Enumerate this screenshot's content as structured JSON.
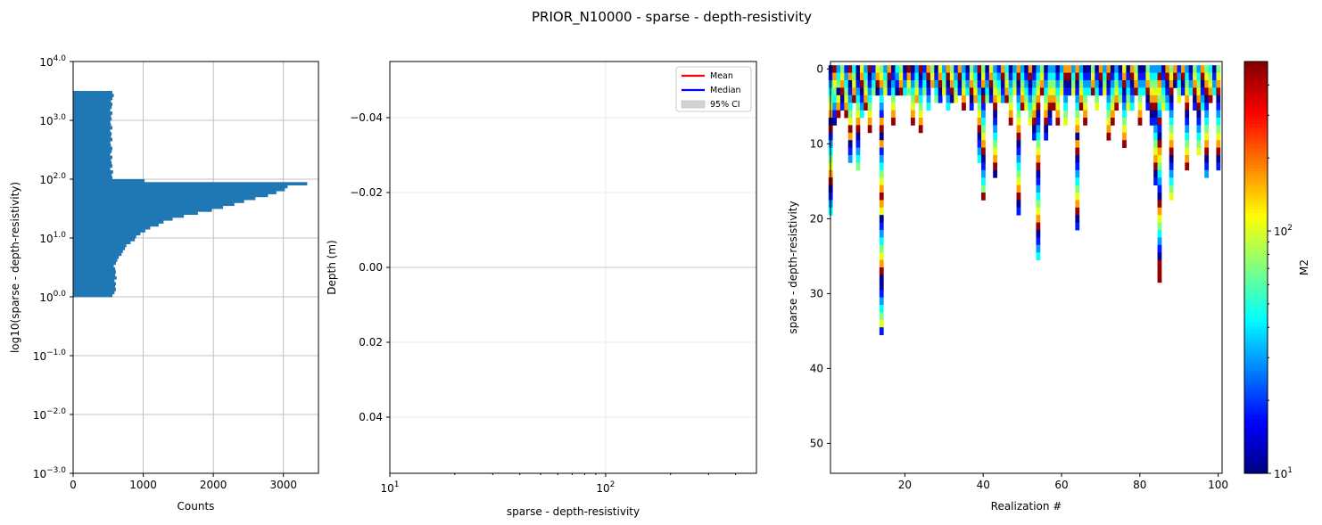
{
  "figure": {
    "suptitle": "PRIOR_N10000 - sparse - depth-resistivity"
  },
  "chart_data": [
    {
      "type": "bar",
      "orientation": "horizontal",
      "name": "histogram",
      "xlabel": "Counts",
      "ylabel": "log10(sparse - depth-resistivity)",
      "xlim": [
        0,
        3500
      ],
      "ylim_log10": [
        -3.0,
        4.0
      ],
      "xticks": [
        "0",
        "1000",
        "2000",
        "3000"
      ],
      "yticks": [
        {
          "base": "10",
          "exp": "4.0"
        },
        {
          "base": "10",
          "exp": "3.0"
        },
        {
          "base": "10",
          "exp": "2.0"
        },
        {
          "base": "10",
          "exp": "1.0"
        },
        {
          "base": "10",
          "exp": "0.0"
        },
        {
          "base": "10",
          "exp": "−1.0"
        },
        {
          "base": "10",
          "exp": "−2.0"
        },
        {
          "base": "10",
          "exp": "−3.0"
        }
      ],
      "grid": true,
      "bins_log10": [
        [
          0.0,
          0.05,
          560
        ],
        [
          0.05,
          0.1,
          590
        ],
        [
          0.1,
          0.15,
          610
        ],
        [
          0.15,
          0.2,
          600
        ],
        [
          0.2,
          0.25,
          610
        ],
        [
          0.25,
          0.3,
          590
        ],
        [
          0.3,
          0.35,
          620
        ],
        [
          0.35,
          0.4,
          600
        ],
        [
          0.4,
          0.45,
          610
        ],
        [
          0.45,
          0.5,
          600
        ],
        [
          0.5,
          0.55,
          580
        ],
        [
          0.55,
          0.6,
          610
        ],
        [
          0.6,
          0.65,
          630
        ],
        [
          0.65,
          0.7,
          650
        ],
        [
          0.7,
          0.75,
          690
        ],
        [
          0.75,
          0.8,
          710
        ],
        [
          0.8,
          0.85,
          740
        ],
        [
          0.85,
          0.9,
          760
        ],
        [
          0.9,
          0.95,
          820
        ],
        [
          0.95,
          1.0,
          880
        ],
        [
          1.0,
          1.05,
          900
        ],
        [
          1.05,
          1.1,
          960
        ],
        [
          1.1,
          1.15,
          1030
        ],
        [
          1.15,
          1.2,
          1100
        ],
        [
          1.2,
          1.25,
          1220
        ],
        [
          1.25,
          1.3,
          1290
        ],
        [
          1.3,
          1.35,
          1420
        ],
        [
          1.35,
          1.4,
          1580
        ],
        [
          1.4,
          1.45,
          1780
        ],
        [
          1.45,
          1.5,
          1980
        ],
        [
          1.5,
          1.55,
          2140
        ],
        [
          1.55,
          1.6,
          2300
        ],
        [
          1.6,
          1.65,
          2440
        ],
        [
          1.65,
          1.7,
          2600
        ],
        [
          1.7,
          1.75,
          2780
        ],
        [
          1.75,
          1.8,
          2900
        ],
        [
          1.8,
          1.85,
          3020
        ],
        [
          1.85,
          1.9,
          3060
        ],
        [
          1.9,
          1.95,
          3340
        ],
        [
          1.95,
          2.0,
          1020
        ],
        [
          2.0,
          2.05,
          560
        ],
        [
          2.05,
          2.1,
          550
        ],
        [
          2.1,
          2.15,
          570
        ],
        [
          2.15,
          2.2,
          530
        ],
        [
          2.2,
          2.25,
          560
        ],
        [
          2.25,
          2.3,
          550
        ],
        [
          2.3,
          2.35,
          540
        ],
        [
          2.35,
          2.4,
          560
        ],
        [
          2.4,
          2.45,
          530
        ],
        [
          2.45,
          2.5,
          550
        ],
        [
          2.5,
          2.55,
          560
        ],
        [
          2.55,
          2.6,
          540
        ],
        [
          2.6,
          2.65,
          530
        ],
        [
          2.65,
          2.7,
          560
        ],
        [
          2.7,
          2.75,
          540
        ],
        [
          2.75,
          2.8,
          550
        ],
        [
          2.8,
          2.85,
          530
        ],
        [
          2.85,
          2.9,
          560
        ],
        [
          2.9,
          2.95,
          540
        ],
        [
          2.95,
          3.0,
          530
        ],
        [
          3.0,
          3.05,
          550
        ],
        [
          3.05,
          3.1,
          540
        ],
        [
          3.1,
          3.15,
          560
        ],
        [
          3.15,
          3.2,
          530
        ],
        [
          3.2,
          3.25,
          550
        ],
        [
          3.25,
          3.3,
          560
        ],
        [
          3.3,
          3.35,
          540
        ],
        [
          3.35,
          3.4,
          560
        ],
        [
          3.4,
          3.45,
          580
        ],
        [
          3.45,
          3.5,
          560
        ]
      ]
    },
    {
      "type": "line",
      "name": "depth-profile",
      "xlabel": "sparse - depth-resistivity",
      "ylabel": "Depth (m)",
      "xscale": "log",
      "xlim": [
        10,
        500
      ],
      "ylim": [
        0.055,
        -0.055
      ],
      "xticks": [
        {
          "base": "10",
          "exp": "1"
        },
        {
          "base": "10",
          "exp": "2"
        }
      ],
      "yticks": [
        "−0.04",
        "−0.02",
        "0.00",
        "0.02",
        "0.04"
      ],
      "grid": true,
      "series": [],
      "legend": {
        "position": "top-right",
        "entries": [
          {
            "label": "Mean",
            "color": "#ff0000",
            "kind": "line"
          },
          {
            "label": "Median",
            "color": "#0000ff",
            "kind": "line"
          },
          {
            "label": "95% CI",
            "color": "#d3d3d3",
            "kind": "patch"
          }
        ]
      }
    },
    {
      "type": "heatmap",
      "name": "realizations",
      "xlabel": "Realization #",
      "ylabel": "sparse - depth-resistivity",
      "xlim": [
        1,
        101
      ],
      "ylim": [
        54,
        -1
      ],
      "xticks": [
        "20",
        "40",
        "60",
        "80",
        "100"
      ],
      "yticks": [
        "0",
        "10",
        "20",
        "30",
        "40",
        "50"
      ],
      "colormap": "jet",
      "colorbar": {
        "label": "M2",
        "scale": "log",
        "min": 10,
        "max": 500,
        "ticks": [
          {
            "base": "10",
            "exp": "1"
          },
          {
            "base": "10",
            "exp": "2"
          }
        ]
      },
      "columns": [
        [
          1,
          "abcdefgahbcdefghabcd"
        ],
        [
          2,
          "hgfedcba"
        ],
        [
          3,
          "cdeafgh"
        ],
        [
          4,
          "efghab"
        ],
        [
          5,
          "bcdefgh"
        ],
        [
          6,
          "hgabcdefhgabc"
        ],
        [
          7,
          "defgh"
        ],
        [
          8,
          "aabcdefghabcde"
        ],
        [
          9,
          "fghabcd"
        ],
        [
          10,
          "cdefgh"
        ],
        [
          11,
          "habcdefgh"
        ],
        [
          12,
          "bcde"
        ],
        [
          13,
          "fgha"
        ],
        [
          14,
          "efgcdcbghagbcdefghgfabcdefghaabcdefb"
        ],
        [
          15,
          "cdef"
        ],
        [
          16,
          "ghab"
        ],
        [
          17,
          "abcdefgh"
        ],
        [
          18,
          "dcba"
        ],
        [
          19,
          "efgh"
        ],
        [
          20,
          "abcd"
        ],
        [
          21,
          "hgfe"
        ],
        [
          22,
          "abcdefgh"
        ],
        [
          23,
          "cdefg"
        ],
        [
          24,
          "habcdefgh"
        ],
        [
          25,
          "bcde"
        ],
        [
          26,
          "ghabcd"
        ],
        [
          27,
          "efg"
        ],
        [
          28,
          "abcde"
        ],
        [
          29,
          "fghab"
        ],
        [
          30,
          "cdef"
        ],
        [
          31,
          "ghabcd"
        ],
        [
          32,
          "efgha"
        ],
        [
          33,
          "bcdef"
        ],
        [
          34,
          "ghab"
        ],
        [
          35,
          "cdefgh"
        ],
        [
          36,
          "abcd"
        ],
        [
          37,
          "efghab"
        ],
        [
          38,
          "cdefg"
        ],
        [
          39,
          "habcdefghabcd"
        ],
        [
          40,
          "efgahbcdefghabcdeh"
        ],
        [
          41,
          "abcde"
        ],
        [
          42,
          "fghab"
        ],
        [
          43,
          "cdefghabcdefgha"
        ],
        [
          44,
          "bcdef"
        ],
        [
          45,
          "ghabc"
        ],
        [
          46,
          "defgh"
        ],
        [
          47,
          "abcdefgh"
        ],
        [
          48,
          "cdef"
        ],
        [
          49,
          "ghabcdefghabcdefghab"
        ],
        [
          50,
          "cdefgh"
        ],
        [
          51,
          "abcdef"
        ],
        [
          52,
          "ghabcdef"
        ],
        [
          53,
          "abcdefghab"
        ],
        [
          54,
          "cdefghabcdefghabcdefghabcd"
        ],
        [
          55,
          "efgh"
        ],
        [
          56,
          "abcdefghab"
        ],
        [
          57,
          "cdefghab"
        ],
        [
          58,
          "cdefgh"
        ],
        [
          59,
          "abcdefgh"
        ],
        [
          60,
          "cdef"
        ],
        [
          61,
          "ghabcdef"
        ],
        [
          62,
          "ghab"
        ],
        [
          63,
          "cdef"
        ],
        [
          64,
          "ghabcdefgaghabcdefghab"
        ],
        [
          65,
          "cdefgh"
        ],
        [
          66,
          "abcdefgh"
        ],
        [
          67,
          "abcd"
        ],
        [
          68,
          "efgh"
        ],
        [
          69,
          "abcdef"
        ],
        [
          70,
          "ghab"
        ],
        [
          71,
          "cdef"
        ],
        [
          72,
          "ghabcdefgh"
        ],
        [
          73,
          "abcdefgh"
        ],
        [
          74,
          "cdefgh"
        ],
        [
          75,
          "abcde"
        ],
        [
          76,
          "fghabcdefgh"
        ],
        [
          77,
          "abcdef"
        ],
        [
          78,
          "ghabcd"
        ],
        [
          79,
          "efgh"
        ],
        [
          80,
          "abcdefgh"
        ],
        [
          81,
          "abcd"
        ],
        [
          82,
          "efghab"
        ],
        [
          83,
          "cdefghab"
        ],
        [
          84,
          "cdefghabcdefghab"
        ],
        [
          85,
          "chgfedchbahgfedcbahgfedcbahhh"
        ],
        [
          86,
          "abcdef"
        ],
        [
          87,
          "ghabcd"
        ],
        [
          88,
          "efghabcdefghabcdef"
        ],
        [
          89,
          "gha"
        ],
        [
          90,
          "bcdef"
        ],
        [
          91,
          "ghab"
        ],
        [
          92,
          "cdefghabcdefgh"
        ],
        [
          93,
          "abcd"
        ],
        [
          94,
          "efghab"
        ],
        [
          95,
          "cdefghabcdef"
        ],
        [
          96,
          "ghabcd"
        ],
        [
          97,
          "efghabcdefghabc"
        ],
        [
          98,
          "defgh"
        ],
        [
          99,
          "abcd"
        ],
        [
          100,
          "efghabcdefghab"
        ]
      ]
    }
  ]
}
